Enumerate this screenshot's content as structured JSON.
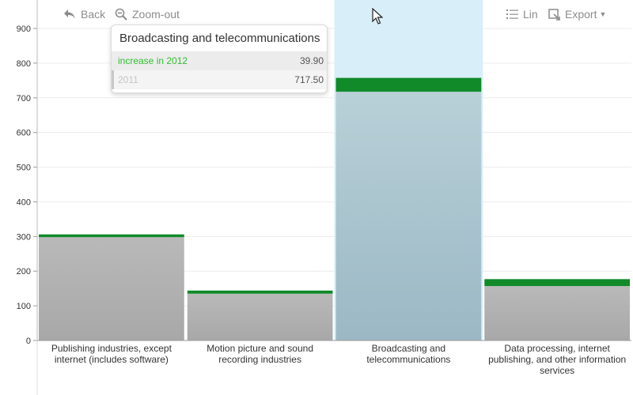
{
  "toolbar": {
    "back_label": "Back",
    "zoom_label": "Zoom-out",
    "lin_label": "Lin",
    "export_label": "Export"
  },
  "tooltip": {
    "title": "Broadcasting and telecommunications",
    "rows": [
      {
        "label": "increase in 2012",
        "value": "39.90"
      },
      {
        "label": "2011",
        "value": "717.50"
      }
    ]
  },
  "colors": {
    "base_bar": "#a8a8a8",
    "increase_bar": "#118a2a",
    "highlight_band": "#d8eef8",
    "highlight_bar": "#9bb8c4",
    "increase_label": "#2fbf2f"
  },
  "chart_data": {
    "type": "bar",
    "stacked": true,
    "categories": [
      "Publishing industries, except internet (includes software)",
      "Motion picture and sound recording industries",
      "Broadcasting and telecommunications",
      "Data processing, internet publishing, and other information services"
    ],
    "category_lines": [
      [
        "Publishing industries, except",
        "internet (includes software)"
      ],
      [
        "Motion picture and sound",
        "recording industries"
      ],
      [
        "Broadcasting and",
        "telecommunications"
      ],
      [
        "Data processing, internet",
        "publishing, and other information",
        "services"
      ]
    ],
    "series": [
      {
        "name": "2011",
        "values": [
          298,
          135,
          717.5,
          157
        ]
      },
      {
        "name": "increase in 2012",
        "values": [
          8,
          9,
          39.9,
          20
        ]
      }
    ],
    "highlighted_index": 2,
    "yticks": [
      0,
      100,
      200,
      300,
      400,
      500,
      600,
      700,
      800,
      900
    ],
    "ylim": [
      0,
      900
    ],
    "grid": true,
    "title": "",
    "xlabel": "",
    "ylabel": ""
  }
}
